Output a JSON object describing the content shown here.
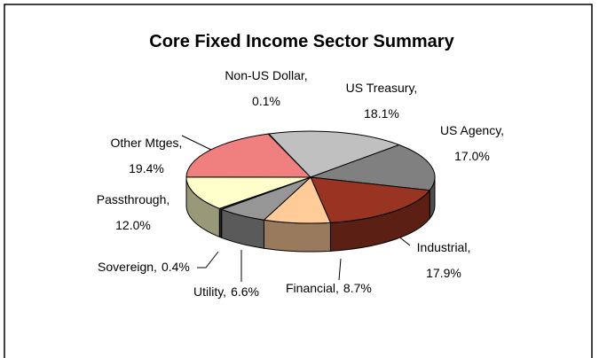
{
  "chart_data": {
    "type": "pie3d",
    "title": "Core Fixed Income Sector Summary",
    "categories": [
      "Non-US Dollar,",
      "US Treasury,",
      "US Agency,",
      "Industrial,",
      "Financial,",
      "Utility,",
      "Sovereign,",
      "Passthrough,",
      "Other Mtges,"
    ],
    "values": [
      0.1,
      18.1,
      17.0,
      17.9,
      8.7,
      6.6,
      0.4,
      12.0,
      19.4
    ],
    "value_labels": [
      "0.1%",
      "18.1%",
      "17.0%",
      "17.9%",
      "8.7%",
      "6.6%",
      "0.4%",
      "12.0%",
      "19.4%"
    ],
    "colors": [
      "#e0e0e0",
      "#c0c0c0",
      "#808080",
      "#993322",
      "#ffcc99",
      "#969696",
      "#404040",
      "#ffffcc",
      "#f08080"
    ]
  }
}
